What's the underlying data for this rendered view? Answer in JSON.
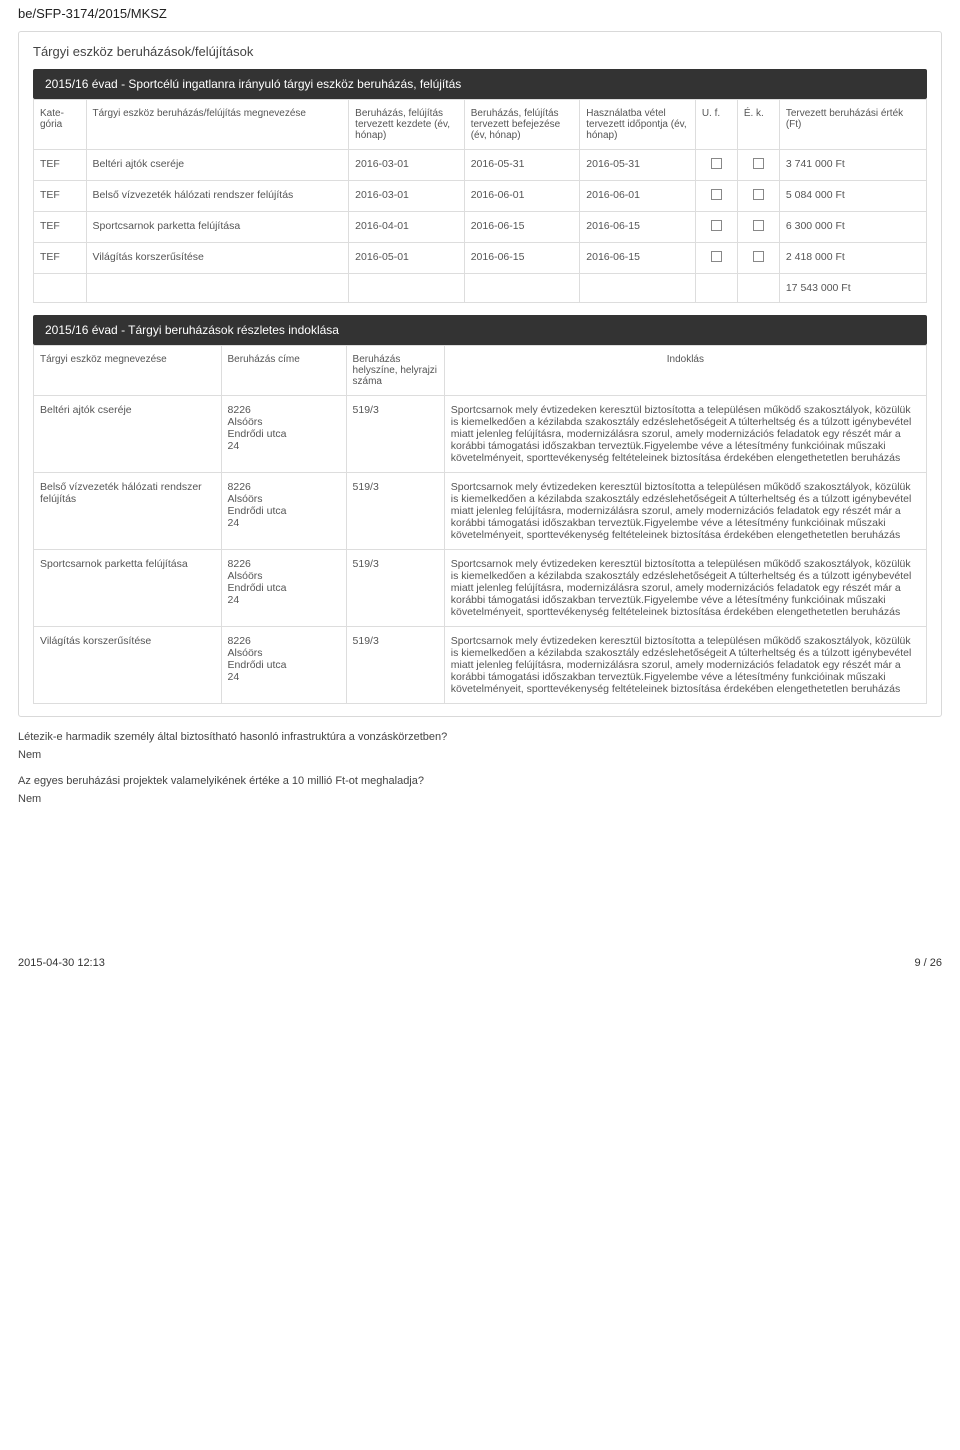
{
  "doc_id": "be/SFP-3174/2015/MKSZ",
  "card_title": "Tárgyi eszköz beruházások/felújítások",
  "section1_title": "2015/16 évad - Sportcélú ingatlanra irányuló tárgyi eszköz beruházás, felújítás",
  "table1": {
    "cols": {
      "c1": "Kate-gória",
      "c2": "Tárgyi eszköz beruházás/felújítás megnevezése",
      "c3": "Beruházás, felújítás tervezett kezdete (év, hónap)",
      "c4": "Beruházás, felújítás tervezett befejezése (év, hónap)",
      "c5": "Használatba vétel tervezett időpontja (év, hónap)",
      "c6": "U. f.",
      "c7": "É. k.",
      "c8": "Tervezett beruházási érték (Ft)"
    },
    "col_widths": [
      "5%",
      "25%",
      "11%",
      "11%",
      "11%",
      "4%",
      "4%",
      "14%"
    ],
    "rows": [
      {
        "cat": "TEF",
        "name": "Beltéri ajtók cseréje",
        "start": "2016-03-01",
        "end": "2016-05-31",
        "use": "2016-05-31",
        "val": "3 741 000 Ft"
      },
      {
        "cat": "TEF",
        "name": "Belső vízvezeték hálózati rendszer felújítás",
        "start": "2016-03-01",
        "end": "2016-06-01",
        "use": "2016-06-01",
        "val": "5 084 000 Ft"
      },
      {
        "cat": "TEF",
        "name": "Sportcsarnok parketta felújítása",
        "start": "2016-04-01",
        "end": "2016-06-15",
        "use": "2016-06-15",
        "val": "6 300 000 Ft"
      },
      {
        "cat": "TEF",
        "name": "Világítás korszerűsítése",
        "start": "2016-05-01",
        "end": "2016-06-15",
        "use": "2016-06-15",
        "val": "2 418 000 Ft"
      }
    ],
    "total": "17 543 000 Ft"
  },
  "section2_title": "2015/16 évad - Tárgyi beruházások részletes indoklása",
  "table2": {
    "cols": {
      "c1": "Tárgyi eszköz megnevezése",
      "c2": "Beruházás címe",
      "c3": "Beruházás helyszíne, helyrajzi száma",
      "c4": "Indoklás"
    },
    "col_widths": [
      "21%",
      "14%",
      "11%",
      "54%"
    ],
    "address": {
      "zip": "8226",
      "city": "Alsóörs",
      "street": "Endrődi utca",
      "num": "24"
    },
    "hrsz": "519/3",
    "justification": "Sportcsarnok mely évtizedeken keresztül biztosította a településen működő szakosztályok, közülük is kiemelkedően a kézilabda szakosztály edzéslehetőségeit A túlterheltség és a túlzott igénybevétel miatt jelenleg felújításra, modernizálásra szorul, amely modernizációs feladatok egy részét már a korábbi támogatási időszakban terveztük.Figyelembe véve a létesítmény funkcióinak műszaki követelményeit, sporttevékenység feltételeinek biztosítása érdekében elengethetetlen beruházás",
    "rows": [
      {
        "name": "Beltéri ajtók cseréje"
      },
      {
        "name": "Belső vízvezeték hálózati rendszer felújítás"
      },
      {
        "name": "Sportcsarnok parketta felújítása"
      },
      {
        "name": "Világítás korszerűsítése"
      }
    ]
  },
  "q1": "Létezik-e harmadik személy által biztosítható hasonló infrastruktúra a vonzáskörzetben?",
  "a1": "Nem",
  "q2": "Az egyes beruházási projektek valamelyikének értéke a 10 millió Ft-ot meghaladja?",
  "a2": "Nem",
  "footer": {
    "date": "2015-04-30 12:13",
    "page": "9 / 26"
  }
}
